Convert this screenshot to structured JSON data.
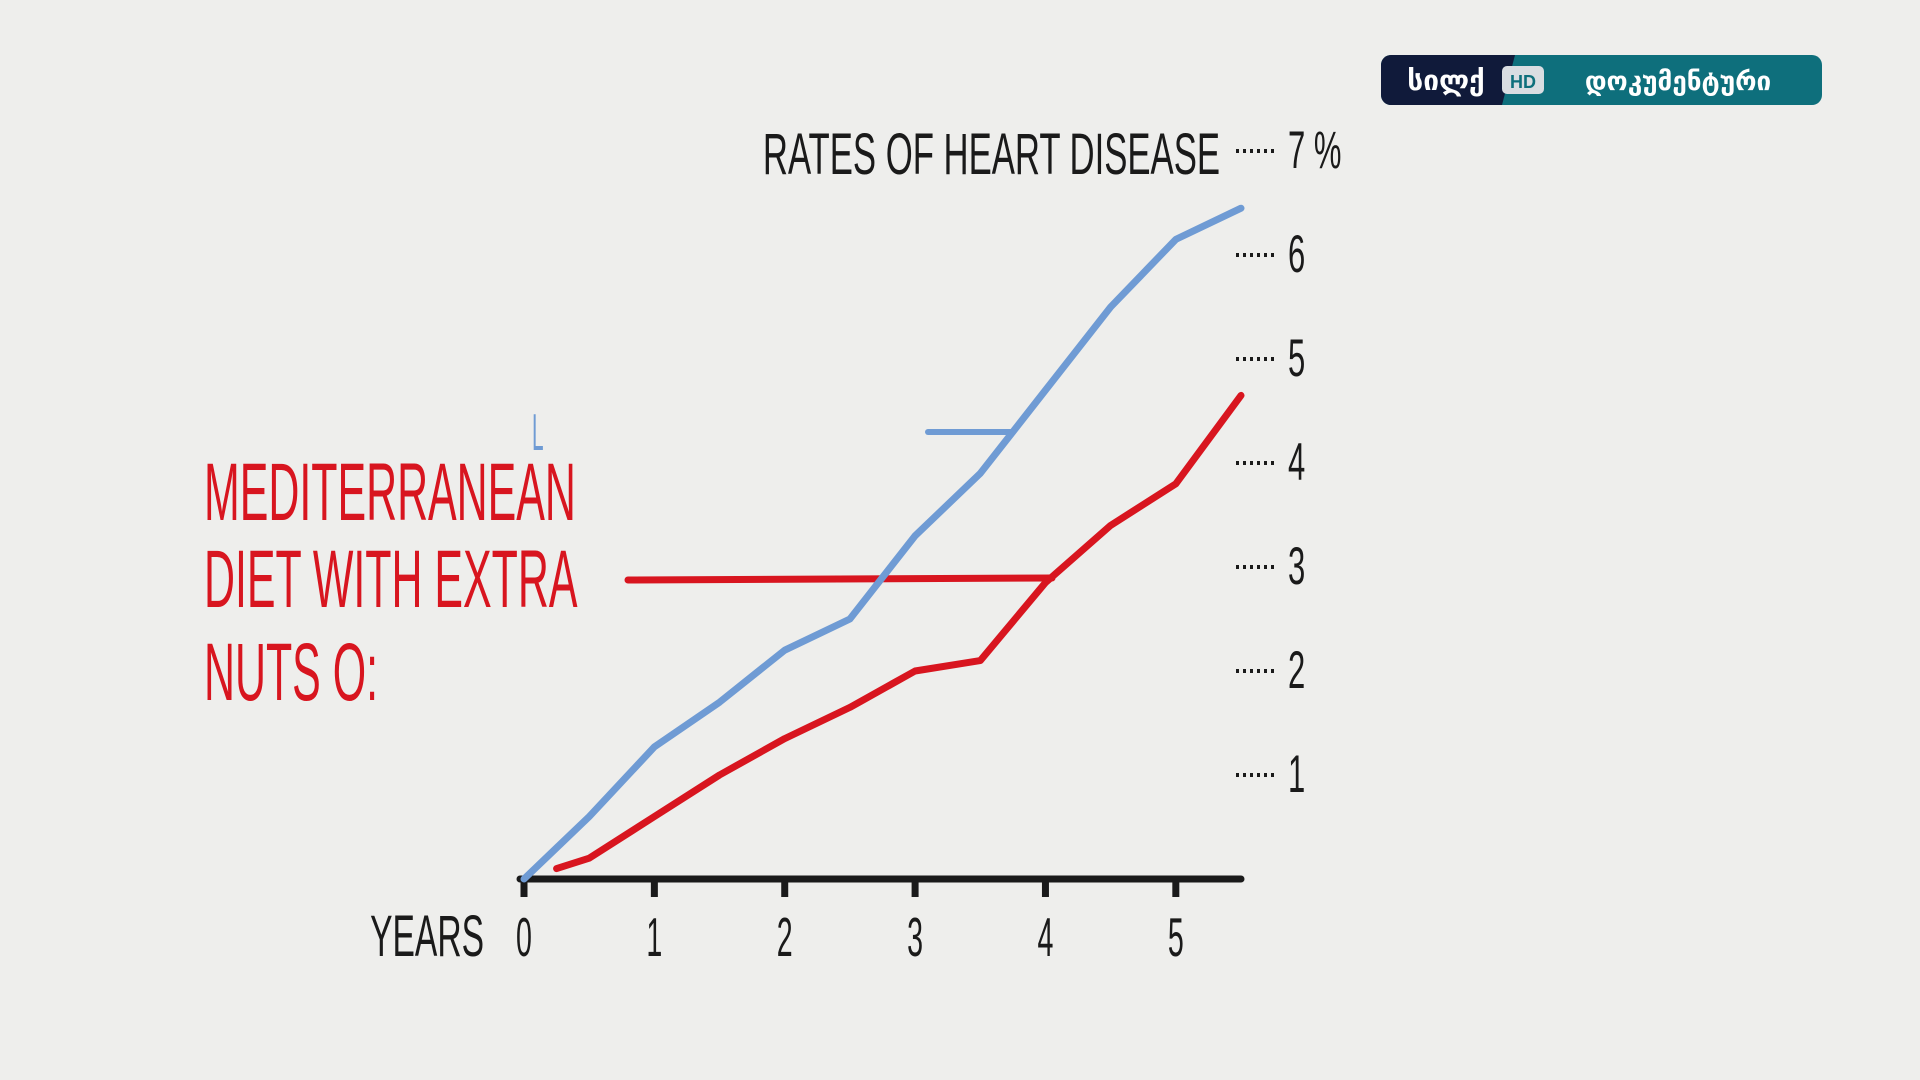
{
  "logo": {
    "left": "სილქ",
    "badge": "HD",
    "right": "დოკუმენტური"
  },
  "chart_data": {
    "type": "line",
    "title": "RATES OF HEART DISEASE",
    "x_label": "YEARS",
    "annotations": [
      "MEDITERRANEAN",
      "DIET WITH EXTRA",
      "NUTS O:",
      "L"
    ],
    "x": [
      0,
      0.25,
      0.5,
      1,
      1.5,
      2,
      2.5,
      3,
      3.5,
      4,
      4.5,
      5,
      5.5
    ],
    "series": [
      {
        "color": "#6f9bd4",
        "values": [
          0,
          0.3,
          0.6,
          1.27,
          1.7,
          2.2,
          2.5,
          3.3,
          3.9,
          4.7,
          5.5,
          6.15,
          6.45
        ]
      },
      {
        "color": "#d8151f",
        "values": [
          null,
          0.1,
          0.2,
          0.6,
          1.0,
          1.35,
          1.65,
          2.0,
          2.1,
          2.85,
          3.4,
          3.8,
          4.65
        ]
      }
    ],
    "xlim": [
      0,
      5.5
    ],
    "ylim": [
      0,
      7
    ],
    "xticks": [
      0,
      1,
      2,
      3,
      4,
      5
    ],
    "yticks": [
      1,
      2,
      3,
      4,
      5,
      6,
      {
        "value": 7,
        "label": "7 %"
      }
    ]
  }
}
